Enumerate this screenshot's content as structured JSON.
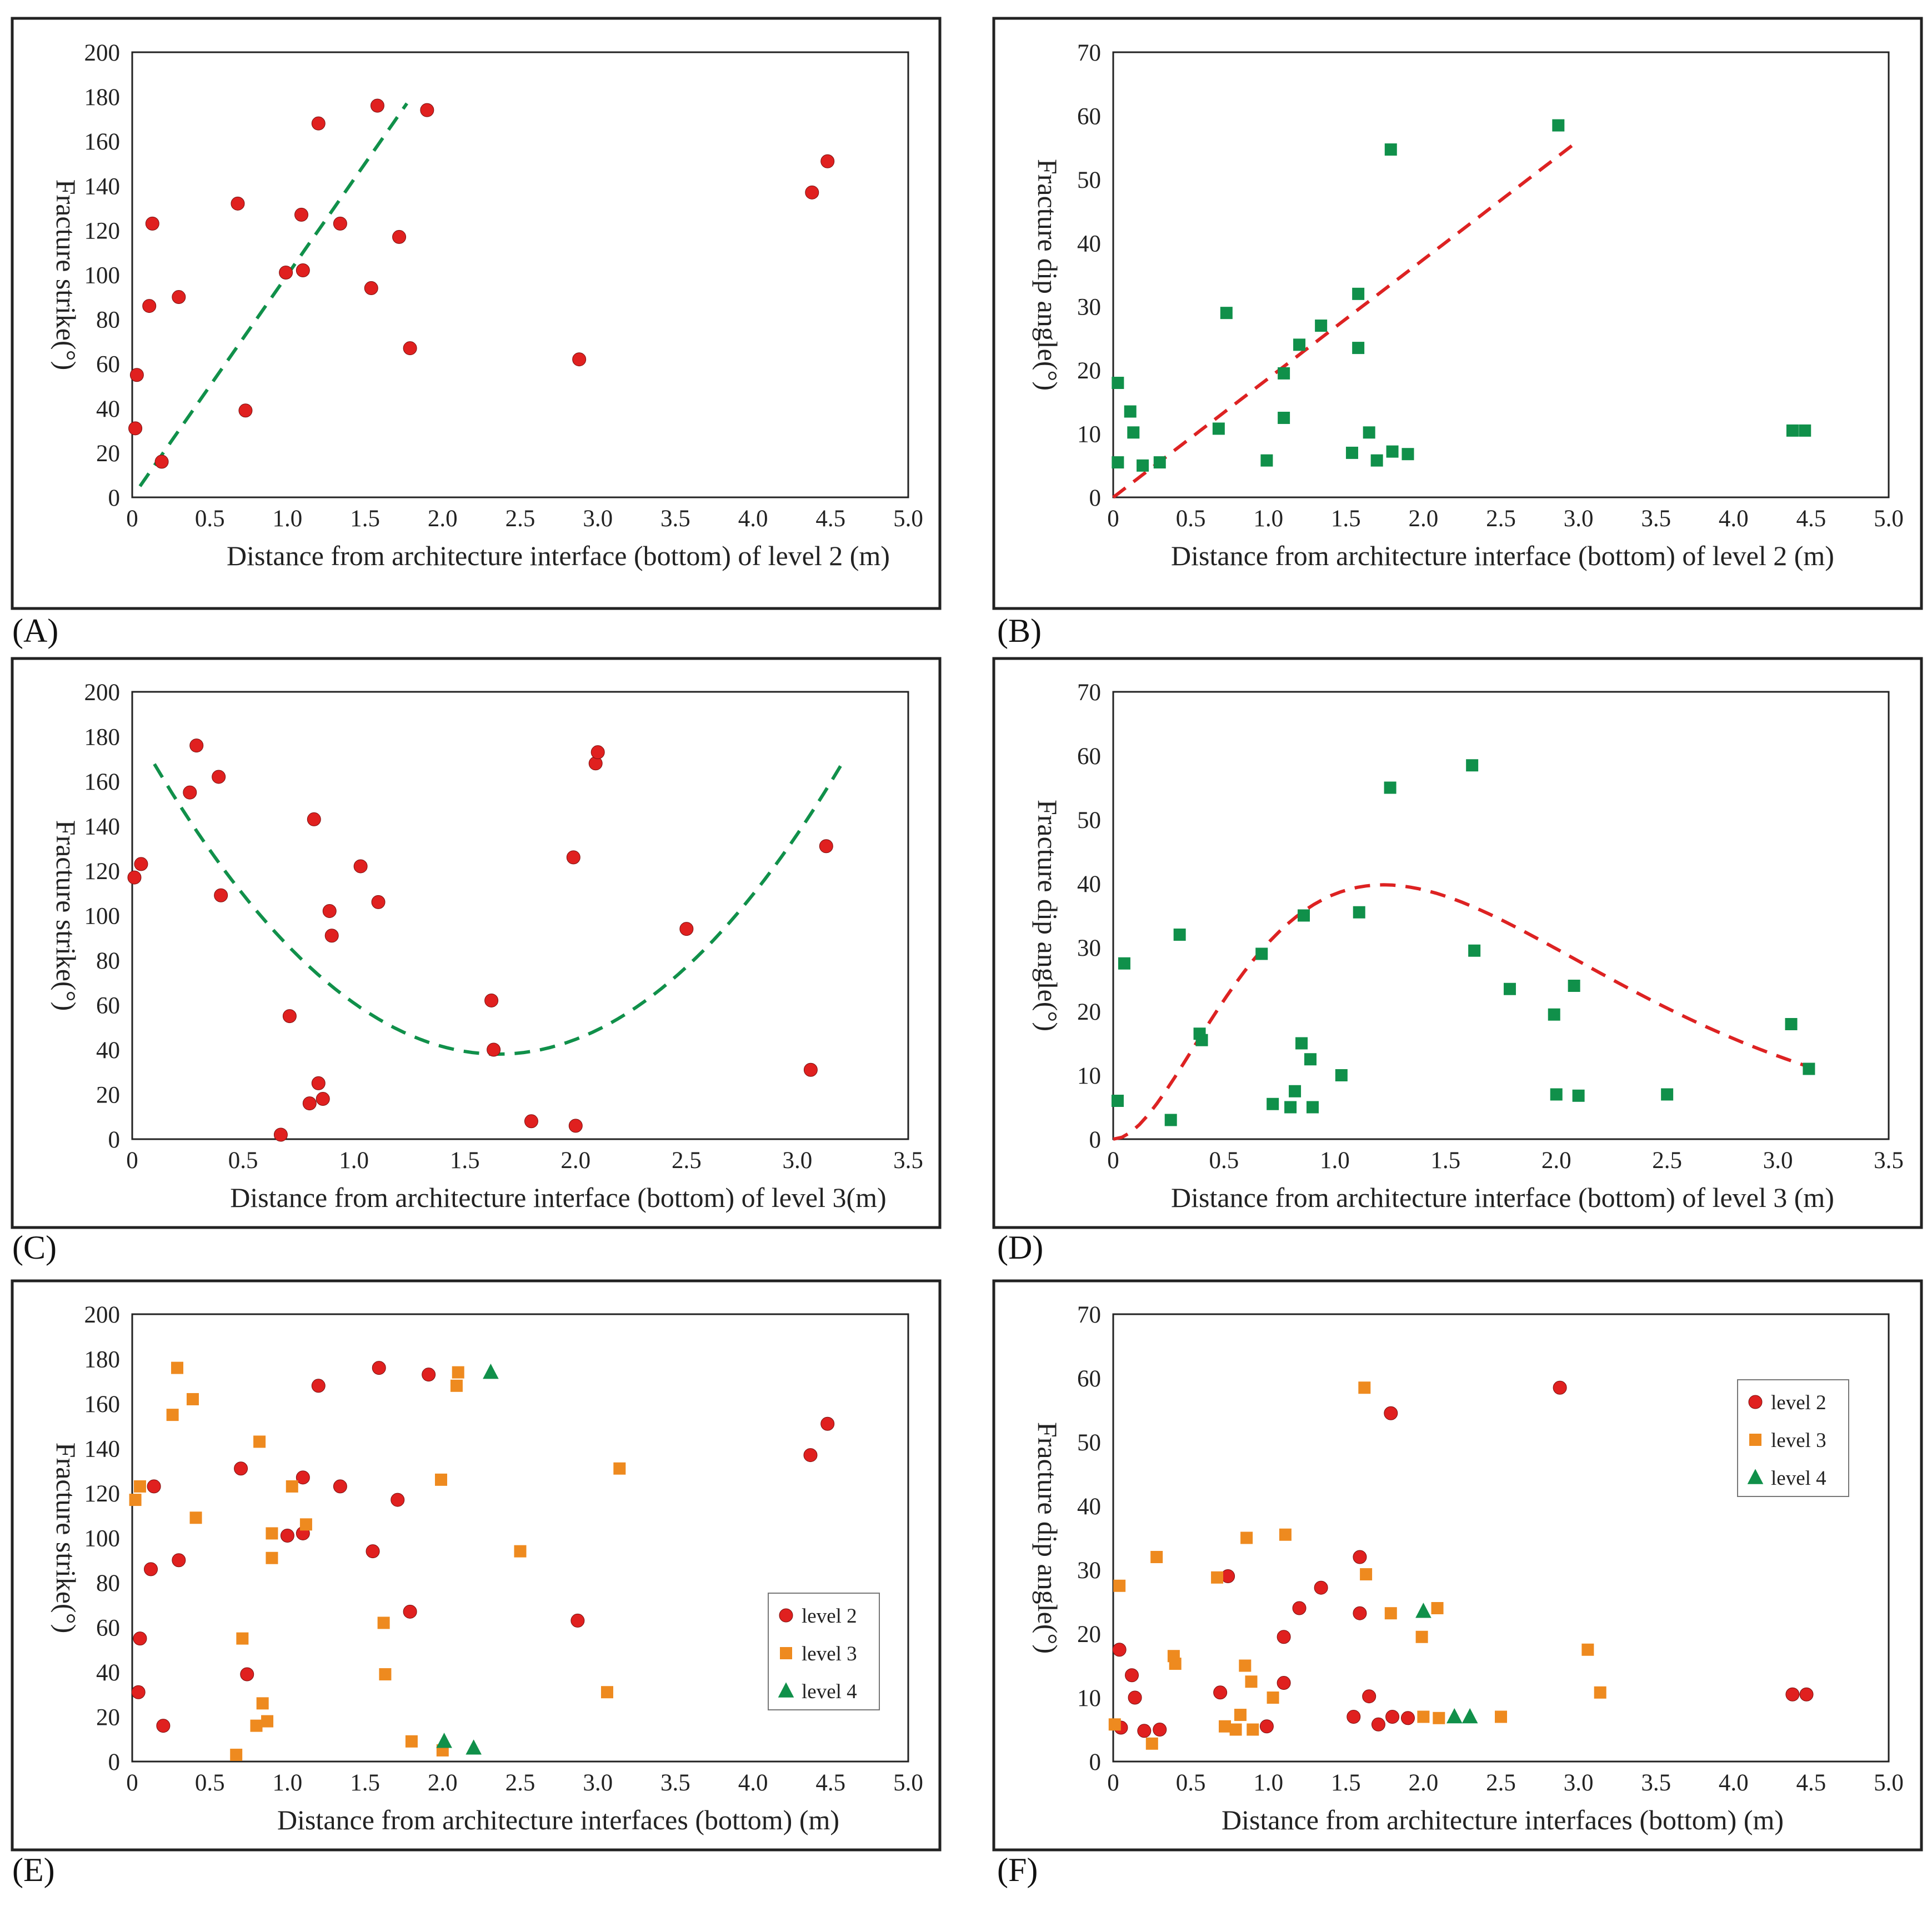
{
  "colors": {
    "level2": "#e0201f",
    "level3": "#ee8a1f",
    "level4": "#10904a",
    "fit_green": "#10904a",
    "fit_red": "#dd2222"
  },
  "chart_data": [
    {
      "panel": "(A)",
      "type": "scatter",
      "xlabel": "Distance from architecture interface (bottom) of level 2 (m)",
      "ylabel": "Fracture strike(°)",
      "xlim": [
        0,
        5.0
      ],
      "ylim": [
        0,
        200
      ],
      "xticks": [
        "0",
        "0.5",
        "1.0",
        "1.5",
        "2.0",
        "2.5",
        "3.0",
        "3.5",
        "4.0",
        "4.5",
        "5.0"
      ],
      "yticks": [
        "0",
        "20",
        "40",
        "60",
        "80",
        "100",
        "120",
        "140",
        "160",
        "180",
        "200"
      ],
      "legend": false,
      "series": [
        {
          "name": "level 2",
          "marker": "circle",
          "color": "#e0201f",
          "points": [
            [
              0.02,
              31
            ],
            [
              0.03,
              55
            ],
            [
              0.11,
              86
            ],
            [
              0.13,
              123
            ],
            [
              0.19,
              16
            ],
            [
              0.3,
              90
            ],
            [
              0.68,
              132
            ],
            [
              0.73,
              39
            ],
            [
              0.99,
              101
            ],
            [
              1.09,
              127
            ],
            [
              1.1,
              102
            ],
            [
              1.2,
              168
            ],
            [
              1.34,
              123
            ],
            [
              1.54,
              94
            ],
            [
              1.58,
              176
            ],
            [
              1.72,
              117
            ],
            [
              1.79,
              67
            ],
            [
              1.9,
              174
            ],
            [
              2.88,
              62
            ],
            [
              4.38,
              137
            ],
            [
              4.48,
              151
            ]
          ]
        }
      ],
      "fit": {
        "kind": "linear",
        "color": "#10904a",
        "x_range": [
          0.05,
          1.77
        ],
        "y0": 0,
        "slope": 100
      }
    },
    {
      "panel": "(B)",
      "type": "scatter",
      "xlabel": "Distance from architecture interface (bottom) of level 2 (m)",
      "ylabel": "Fracture dip angle(°)",
      "xlim": [
        0,
        5.0
      ],
      "ylim": [
        0,
        70
      ],
      "xticks": [
        "0",
        "0.5",
        "1.0",
        "1.5",
        "2.0",
        "2.5",
        "3.0",
        "3.5",
        "4.0",
        "4.5",
        "5.0"
      ],
      "yticks": [
        "0",
        "10",
        "20",
        "30",
        "40",
        "50",
        "60",
        "70"
      ],
      "legend": false,
      "series": [
        {
          "name": "level 2",
          "marker": "square",
          "color": "#10904a",
          "points": [
            [
              0.03,
              18
            ],
            [
              0.03,
              5.5
            ],
            [
              0.11,
              13.5
            ],
            [
              0.13,
              10.2
            ],
            [
              0.19,
              5
            ],
            [
              0.3,
              5.5
            ],
            [
              0.68,
              10.8
            ],
            [
              0.73,
              29
            ],
            [
              0.99,
              5.8
            ],
            [
              1.1,
              19.5
            ],
            [
              1.1,
              12.5
            ],
            [
              1.2,
              24
            ],
            [
              1.34,
              27
            ],
            [
              1.54,
              7
            ],
            [
              1.58,
              32
            ],
            [
              1.58,
              23.5
            ],
            [
              1.65,
              10.2
            ],
            [
              1.7,
              5.8
            ],
            [
              1.79,
              54.7
            ],
            [
              1.8,
              7.2
            ],
            [
              1.9,
              6.8
            ],
            [
              2.87,
              58.5
            ],
            [
              4.38,
              10.5
            ],
            [
              4.46,
              10.5
            ]
          ]
        }
      ],
      "fit": {
        "kind": "linear",
        "color": "#dd2222",
        "x_range": [
          0,
          2.97
        ],
        "y0": 0,
        "slope": 18.7
      }
    },
    {
      "panel": "(C)",
      "type": "scatter",
      "xlabel": "Distance from architecture interface (bottom) of level 3(m)",
      "ylabel": "Fracture strike(°)",
      "xlim": [
        0,
        3.5
      ],
      "ylim": [
        0,
        200
      ],
      "xticks": [
        "0",
        "0.5",
        "1.0",
        "1.5",
        "2.0",
        "2.5",
        "3.0",
        "3.5"
      ],
      "yticks": [
        "0",
        "20",
        "40",
        "60",
        "80",
        "100",
        "120",
        "140",
        "160",
        "180",
        "200"
      ],
      "legend": false,
      "series": [
        {
          "name": "level 3",
          "marker": "circle",
          "color": "#e0201f",
          "points": [
            [
              0.01,
              117
            ],
            [
              0.04,
              123
            ],
            [
              0.26,
              155
            ],
            [
              0.29,
              176
            ],
            [
              0.39,
              162
            ],
            [
              0.4,
              109
            ],
            [
              0.67,
              2
            ],
            [
              0.71,
              55
            ],
            [
              0.8,
              16
            ],
            [
              0.82,
              143
            ],
            [
              0.84,
              25
            ],
            [
              0.86,
              18
            ],
            [
              0.89,
              102
            ],
            [
              0.9,
              91
            ],
            [
              1.03,
              122
            ],
            [
              1.11,
              106
            ],
            [
              1.62,
              62
            ],
            [
              1.63,
              40
            ],
            [
              1.8,
              8
            ],
            [
              1.99,
              126
            ],
            [
              2.0,
              6
            ],
            [
              2.09,
              168
            ],
            [
              2.1,
              173
            ],
            [
              2.5,
              94
            ],
            [
              3.06,
              31
            ],
            [
              3.13,
              131
            ]
          ]
        }
      ],
      "fit": {
        "kind": "quadratic",
        "color": "#10904a",
        "x_range": [
          0.1,
          3.2
        ],
        "vertex_x": 1.65,
        "vertex_y": 38,
        "a": 54
      }
    },
    {
      "panel": "(D)",
      "type": "scatter",
      "xlabel": "Distance from architecture interface (bottom) of level 3 (m)",
      "ylabel": "Fracture dip angle(°)",
      "xlim": [
        0,
        3.5
      ],
      "ylim": [
        0,
        70
      ],
      "xticks": [
        "0",
        "0.5",
        "1.0",
        "1.5",
        "2.0",
        "2.5",
        "3.0",
        "3.5"
      ],
      "yticks": [
        "0",
        "10",
        "20",
        "30",
        "40",
        "50",
        "60",
        "70"
      ],
      "legend": false,
      "series": [
        {
          "name": "level 3",
          "marker": "square",
          "color": "#10904a",
          "points": [
            [
              0.02,
              6
            ],
            [
              0.05,
              27.5
            ],
            [
              0.26,
              3
            ],
            [
              0.3,
              32
            ],
            [
              0.39,
              16.5
            ],
            [
              0.4,
              15.5
            ],
            [
              0.67,
              29
            ],
            [
              0.72,
              5.5
            ],
            [
              0.8,
              5
            ],
            [
              0.82,
              7.5
            ],
            [
              0.85,
              15
            ],
            [
              0.86,
              35
            ],
            [
              0.89,
              12.5
            ],
            [
              0.9,
              5
            ],
            [
              1.03,
              10
            ],
            [
              1.11,
              35.5
            ],
            [
              1.25,
              55
            ],
            [
              1.62,
              58.5
            ],
            [
              1.63,
              29.5
            ],
            [
              1.79,
              23.5
            ],
            [
              1.99,
              19.5
            ],
            [
              2.0,
              7
            ],
            [
              2.08,
              24
            ],
            [
              2.1,
              6.8
            ],
            [
              2.5,
              7
            ],
            [
              3.06,
              18
            ],
            [
              3.14,
              11
            ]
          ]
        }
      ],
      "fit": {
        "kind": "peak",
        "color": "#dd2222",
        "x_range": [
          0,
          3.15
        ],
        "peak_x": 1.22,
        "peak_y": 39.8
      }
    },
    {
      "panel": "(E)",
      "type": "scatter",
      "xlabel": "Distance from architecture interfaces (bottom) (m)",
      "ylabel": "Fracture strike(°)",
      "xlim": [
        0,
        5.0
      ],
      "ylim": [
        0,
        200
      ],
      "xticks": [
        "0",
        "0.5",
        "1.0",
        "1.5",
        "2.0",
        "2.5",
        "3.0",
        "3.5",
        "4.0",
        "4.5",
        "5.0"
      ],
      "yticks": [
        "0",
        "20",
        "40",
        "60",
        "80",
        "100",
        "120",
        "140",
        "160",
        "180",
        "200"
      ],
      "legend": true,
      "legend_position": "middle-right",
      "series": [
        {
          "name": "level 2",
          "marker": "circle",
          "color": "#e0201f",
          "points": [
            [
              0.04,
              31
            ],
            [
              0.05,
              55
            ],
            [
              0.12,
              86
            ],
            [
              0.14,
              123
            ],
            [
              0.2,
              16
            ],
            [
              0.3,
              90
            ],
            [
              0.7,
              131
            ],
            [
              0.74,
              39
            ],
            [
              1.0,
              101
            ],
            [
              1.1,
              127
            ],
            [
              1.1,
              102
            ],
            [
              1.2,
              168
            ],
            [
              1.34,
              123
            ],
            [
              1.55,
              94
            ],
            [
              1.59,
              176
            ],
            [
              1.71,
              117
            ],
            [
              1.79,
              67
            ],
            [
              1.91,
              173
            ],
            [
              2.87,
              63
            ],
            [
              4.37,
              137
            ],
            [
              4.48,
              151
            ]
          ]
        },
        {
          "name": "level 3",
          "marker": "square",
          "color": "#ee8a1f",
          "points": [
            [
              0.02,
              117
            ],
            [
              0.05,
              123
            ],
            [
              0.26,
              155
            ],
            [
              0.29,
              176
            ],
            [
              0.39,
              162
            ],
            [
              0.41,
              109
            ],
            [
              0.67,
              3
            ],
            [
              0.71,
              55
            ],
            [
              0.8,
              16
            ],
            [
              0.82,
              143
            ],
            [
              0.84,
              26
            ],
            [
              0.87,
              18
            ],
            [
              0.9,
              102
            ],
            [
              0.9,
              91
            ],
            [
              1.03,
              123
            ],
            [
              1.12,
              106
            ],
            [
              1.62,
              62
            ],
            [
              1.63,
              39
            ],
            [
              1.8,
              9
            ],
            [
              1.99,
              126
            ],
            [
              2.0,
              5
            ],
            [
              2.09,
              168
            ],
            [
              2.1,
              174
            ],
            [
              2.5,
              94
            ],
            [
              3.06,
              31
            ],
            [
              3.14,
              131
            ]
          ]
        },
        {
          "name": "level 4",
          "marker": "triangle",
          "color": "#10904a",
          "points": [
            [
              2.01,
              9
            ],
            [
              2.2,
              6
            ],
            [
              2.31,
              174
            ]
          ]
        }
      ]
    },
    {
      "panel": "(F)",
      "type": "scatter",
      "xlabel": "Distance from architecture interfaces (bottom) (m)",
      "ylabel": "Fracture dip angle(°)",
      "xlim": [
        0,
        5.0
      ],
      "ylim": [
        0,
        70
      ],
      "xticks": [
        "0",
        "0.5",
        "1.0",
        "1.5",
        "2.0",
        "2.5",
        "3.0",
        "3.5",
        "4.0",
        "4.5",
        "5.0"
      ],
      "yticks": [
        "0",
        "10",
        "20",
        "30",
        "40",
        "50",
        "60",
        "70"
      ],
      "legend": true,
      "legend_position": "top-right",
      "series": [
        {
          "name": "level 2",
          "marker": "circle",
          "color": "#e0201f",
          "points": [
            [
              0.04,
              17.5
            ],
            [
              0.05,
              5.3
            ],
            [
              0.12,
              13.5
            ],
            [
              0.14,
              10
            ],
            [
              0.2,
              4.8
            ],
            [
              0.3,
              5
            ],
            [
              0.69,
              10.8
            ],
            [
              0.74,
              29
            ],
            [
              0.99,
              5.5
            ],
            [
              1.1,
              19.5
            ],
            [
              1.1,
              12.3
            ],
            [
              1.2,
              24
            ],
            [
              1.34,
              27.2
            ],
            [
              1.55,
              7
            ],
            [
              1.59,
              32
            ],
            [
              1.59,
              23.2
            ],
            [
              1.65,
              10.2
            ],
            [
              1.71,
              5.8
            ],
            [
              1.79,
              54.5
            ],
            [
              1.8,
              7
            ],
            [
              1.9,
              6.8
            ],
            [
              2.88,
              58.5
            ],
            [
              4.38,
              10.5
            ],
            [
              4.47,
              10.5
            ]
          ]
        },
        {
          "name": "level 3",
          "marker": "square",
          "color": "#ee8a1f",
          "points": [
            [
              0.01,
              5.8
            ],
            [
              0.04,
              27.5
            ],
            [
              0.25,
              2.8
            ],
            [
              0.28,
              32
            ],
            [
              0.39,
              16.5
            ],
            [
              0.4,
              15.3
            ],
            [
              0.67,
              28.8
            ],
            [
              0.72,
              5.5
            ],
            [
              0.79,
              5
            ],
            [
              0.82,
              7.3
            ],
            [
              0.85,
              15
            ],
            [
              0.86,
              35
            ],
            [
              0.89,
              12.5
            ],
            [
              0.9,
              5
            ],
            [
              1.03,
              10
            ],
            [
              1.11,
              35.5
            ],
            [
              1.62,
              58.5
            ],
            [
              1.63,
              29.3
            ],
            [
              1.79,
              23.2
            ],
            [
              1.99,
              19.5
            ],
            [
              2.0,
              7
            ],
            [
              2.09,
              24
            ],
            [
              2.1,
              6.8
            ],
            [
              2.5,
              7
            ],
            [
              3.06,
              17.5
            ],
            [
              3.14,
              10.8
            ]
          ]
        },
        {
          "name": "level 4",
          "marker": "triangle",
          "color": "#10904a",
          "points": [
            [
              2.0,
              23.5
            ],
            [
              2.2,
              7
            ],
            [
              2.3,
              7
            ]
          ]
        }
      ]
    }
  ]
}
